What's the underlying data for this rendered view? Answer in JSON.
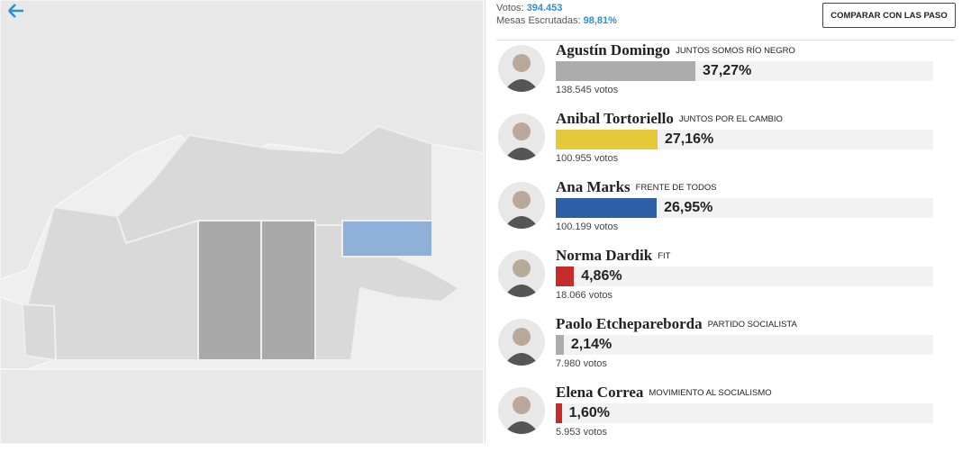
{
  "header": {
    "votes_label": "Votos:",
    "votes_value": "394.453",
    "tables_label": "Mesas Escrutadas:",
    "tables_value": "98,81%",
    "button": "COMPARAR CON LAS PASO"
  },
  "candidates": [
    {
      "name": "Agustín Domingo",
      "party": "JUNTOS SOMOS RÍO NEGRO",
      "percent": 37.27,
      "percent_label": "37,27%",
      "votes": "138.545 votos",
      "color": "#acacac"
    },
    {
      "name": "Anibal Tortoriello",
      "party": "JUNTOS POR EL CAMBIO",
      "percent": 27.16,
      "percent_label": "27,16%",
      "votes": "100.955 votos",
      "color": "#e6c839"
    },
    {
      "name": "Ana Marks",
      "party": "FRENTE DE TODOS",
      "percent": 26.95,
      "percent_label": "26,95%",
      "votes": "100.199 votos",
      "color": "#2c5fa7"
    },
    {
      "name": "Norma Dardik",
      "party": "FIT",
      "percent": 4.86,
      "percent_label": "4,86%",
      "votes": "18.066 votos",
      "color": "#c62a2b"
    },
    {
      "name": "Paolo Etchepareborda",
      "party": "PARTIDO SOCIALISTA",
      "percent": 2.14,
      "percent_label": "2,14%",
      "votes": "7.980 votos",
      "color": "#acacac"
    },
    {
      "name": "Elena Correa",
      "party": "MOVIMIENTO AL SOCIALISMO",
      "percent": 1.6,
      "percent_label": "1,60%",
      "votes": "5.953 votos",
      "color": "#c62a2b"
    }
  ]
}
